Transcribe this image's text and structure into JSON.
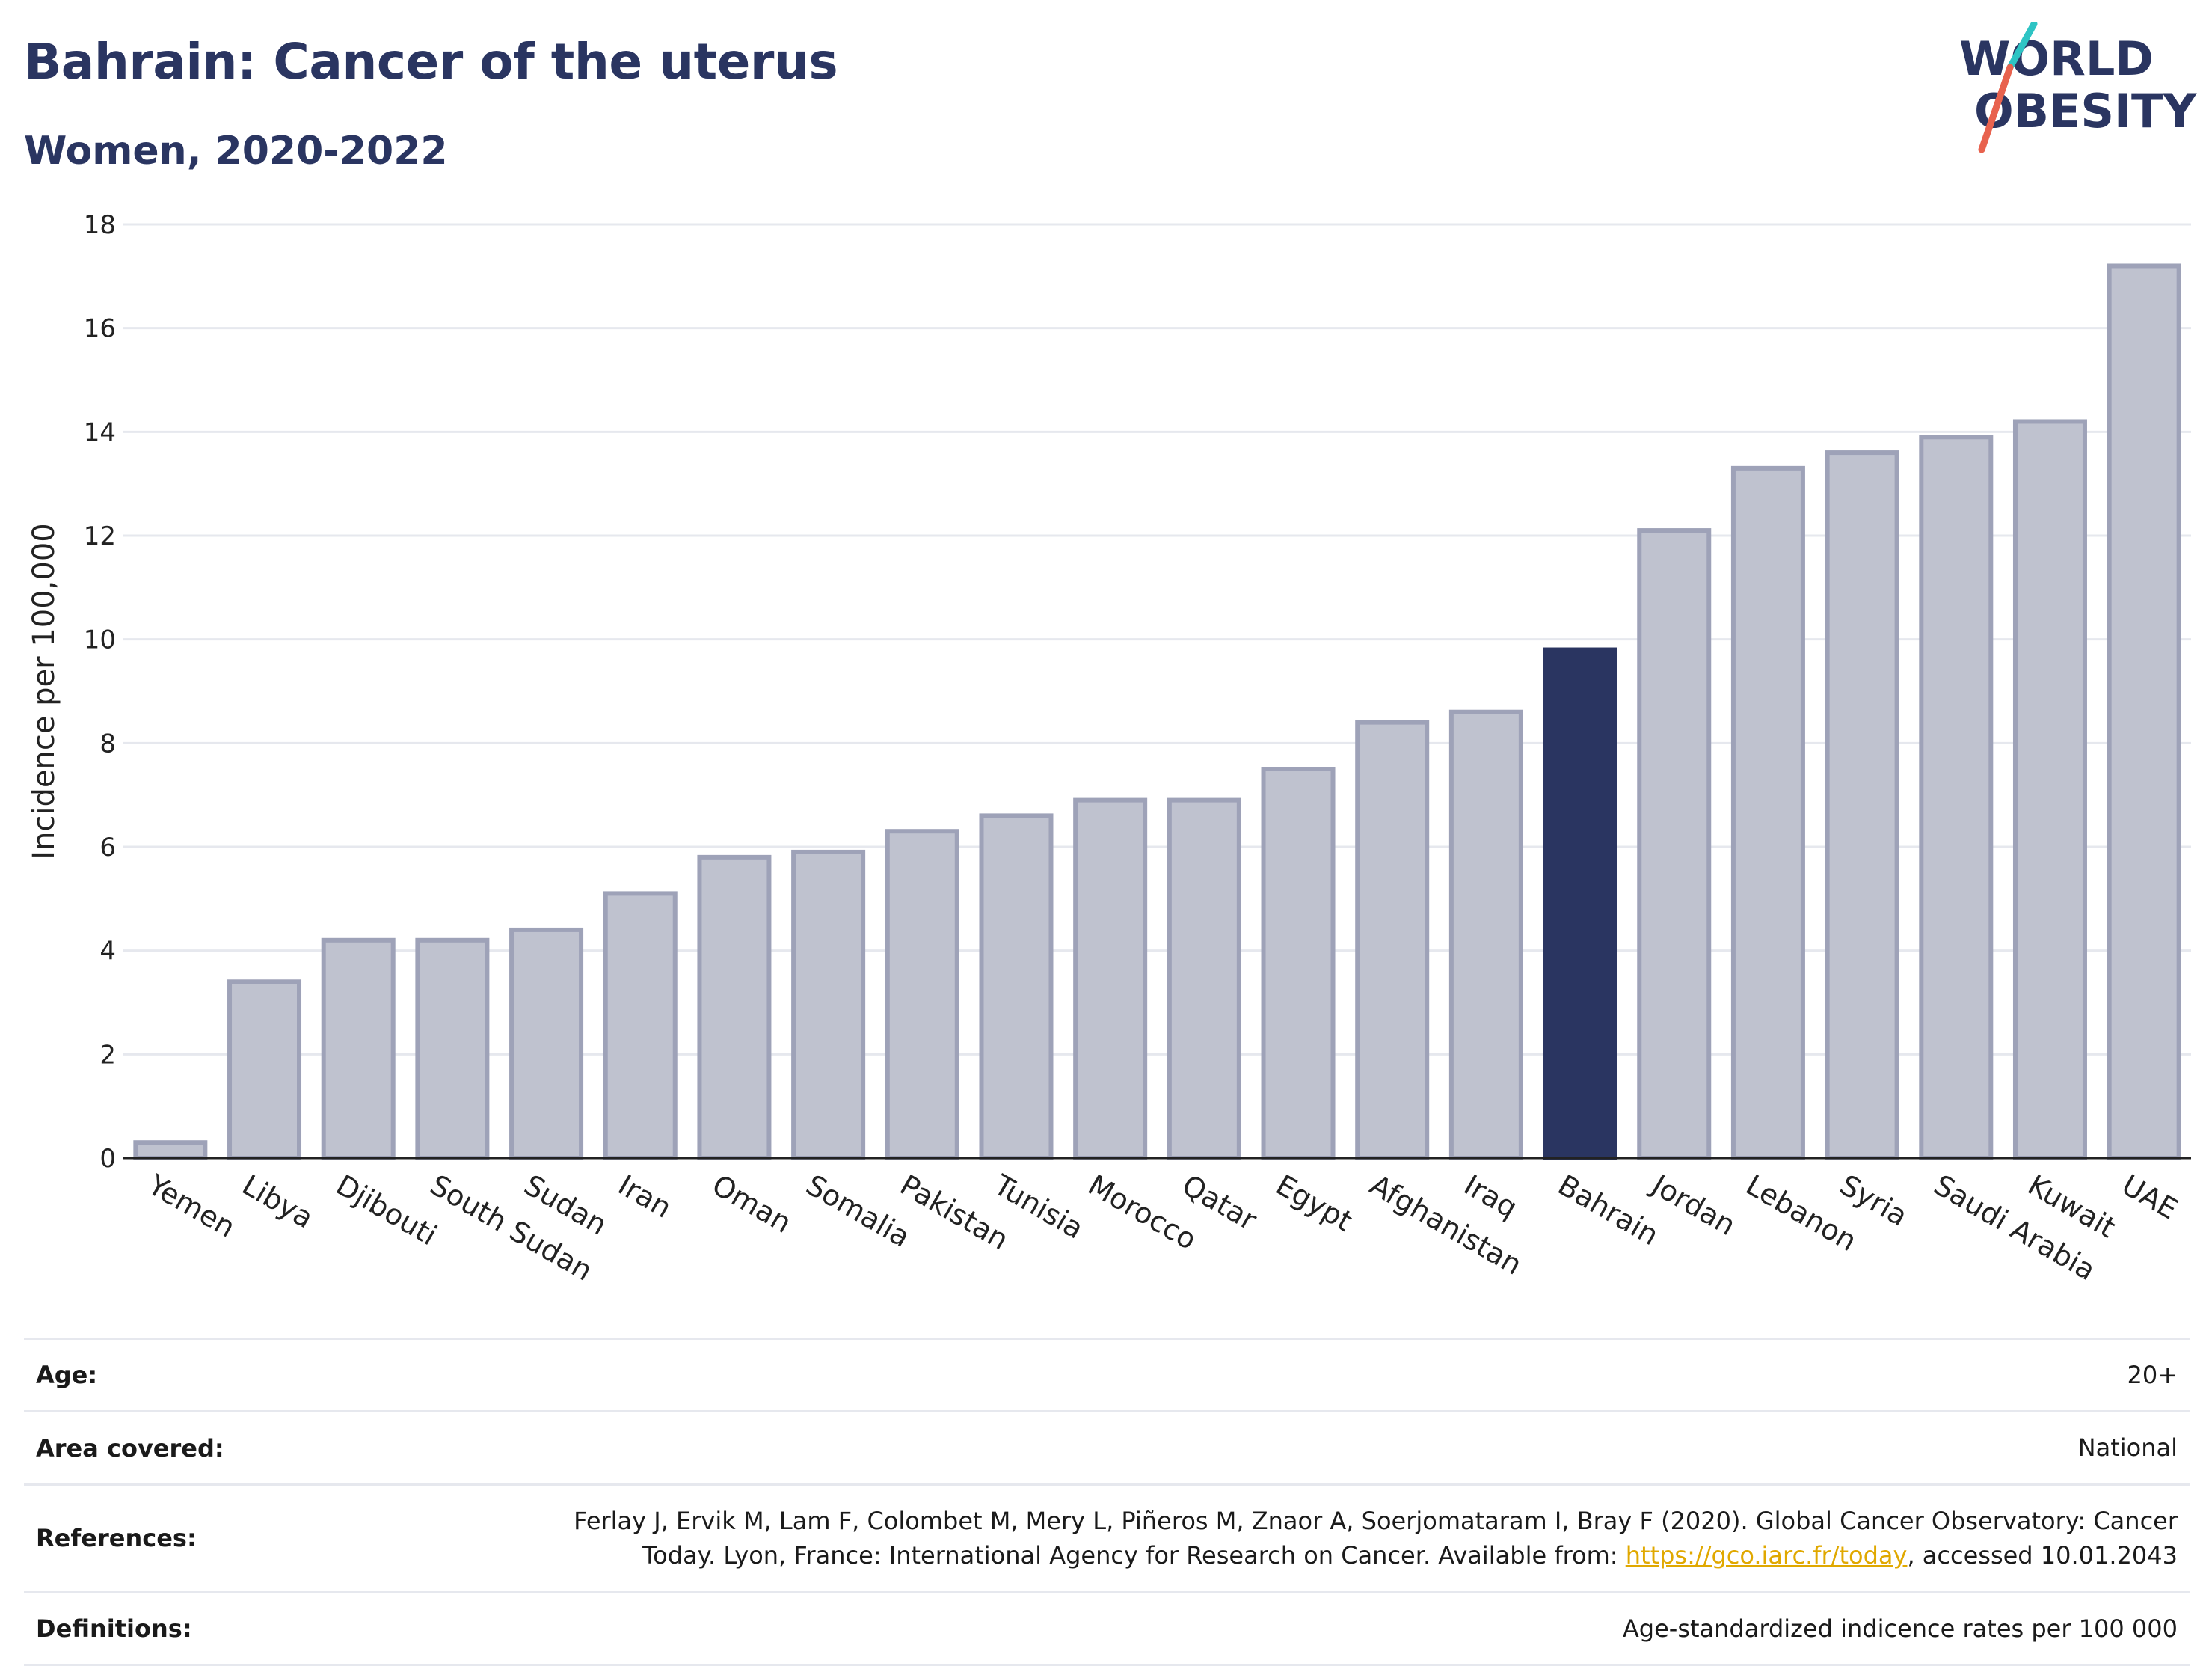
{
  "header": {
    "title": "Bahrain: Cancer of the uterus",
    "subtitle": "Women, 2020-2022",
    "logo_line1": "WORLD",
    "logo_line2": "OBESITY"
  },
  "chart_data": {
    "type": "bar",
    "title": "Bahrain: Cancer of the uterus",
    "subtitle": "Women, 2020-2022",
    "xlabel": "",
    "ylabel": "Incidence per 100,000",
    "ylim": [
      0,
      18
    ],
    "yticks": [
      0,
      2,
      4,
      6,
      8,
      10,
      12,
      14,
      16,
      18
    ],
    "grid": true,
    "highlight": "Bahrain",
    "colors": {
      "default": "#bfc2cf",
      "default_edge": "#9ea2b8",
      "highlight": "#2a3561"
    },
    "categories": [
      "Yemen",
      "Libya",
      "Djibouti",
      "South Sudan",
      "Sudan",
      "Iran",
      "Oman",
      "Somalia",
      "Pakistan",
      "Tunisia",
      "Morocco",
      "Qatar",
      "Egypt",
      "Afghanistan",
      "Iraq",
      "Bahrain",
      "Jordan",
      "Lebanon",
      "Syria",
      "Saudi Arabia",
      "Kuwait",
      "UAE"
    ],
    "values": [
      0.3,
      3.4,
      4.2,
      4.2,
      4.4,
      5.1,
      5.8,
      5.9,
      6.3,
      6.6,
      6.9,
      6.9,
      7.5,
      8.4,
      8.6,
      9.8,
      12.1,
      13.3,
      13.6,
      13.9,
      14.2,
      17.2
    ]
  },
  "info": {
    "age_label": "Age:",
    "age_value": "20+",
    "area_label": "Area covered:",
    "area_value": "National",
    "references_label": "References:",
    "references_line1": "Ferlay J, Ervik M, Lam F, Colombet M, Mery L, Piñeros M, Znaor A, Soerjomataram I, Bray F (2020). Global Cancer Observatory: Cancer",
    "references_line2_pre": "Today. Lyon, France: International Agency for Research on Cancer. Available from: ",
    "references_link": "https://gco.iarc.fr/today",
    "references_line2_post": ", accessed 10.01.2043",
    "definitions_label": "Definitions:",
    "definitions_value": "Age-standardized indicence rates per 100 000"
  }
}
